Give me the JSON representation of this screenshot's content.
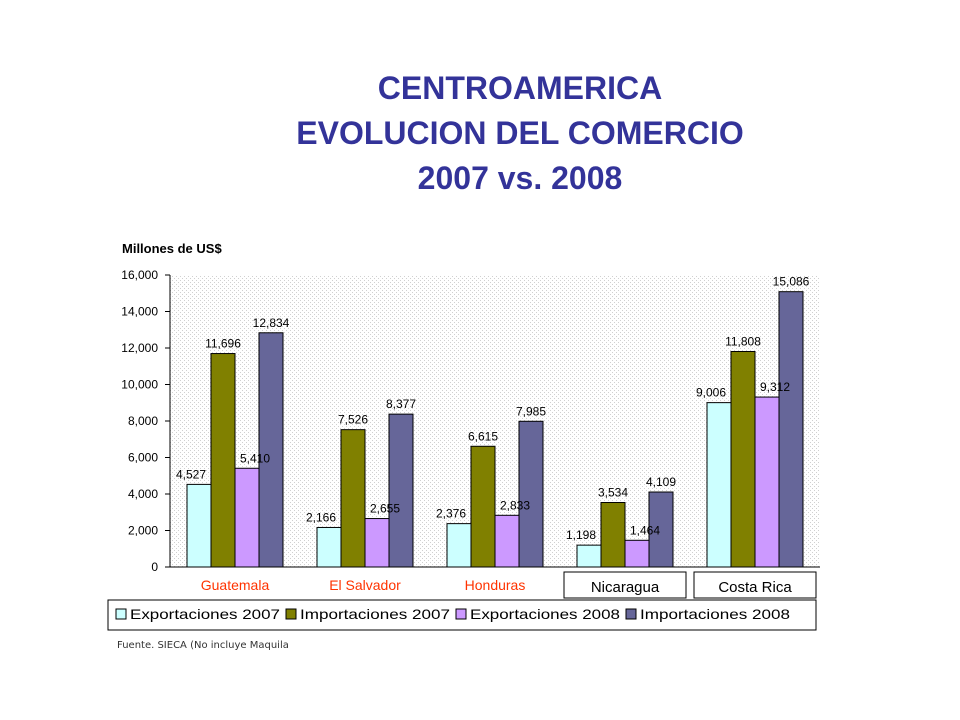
{
  "title": {
    "line1": "CENTROAMERICA",
    "line2": "EVOLUCION DEL COMERCIO",
    "line3": "2007 vs. 2008"
  },
  "source_note": "Fuente. SIECA (No incluye Maquila",
  "colors": {
    "title": "#333399",
    "category_label_boxed": "#000000",
    "category_label_plain": "#ff3300",
    "series": [
      "#ccffff",
      "#808000",
      "#cc99ff",
      "#666699"
    ]
  },
  "chart_data": {
    "type": "bar",
    "ylabel": "Millones de US$",
    "ylim": [
      0,
      16000
    ],
    "yticks": [
      0,
      2000,
      4000,
      6000,
      8000,
      10000,
      12000,
      14000,
      16000
    ],
    "ytick_labels": [
      "0",
      "2,000",
      "4,000",
      "6,000",
      "8,000",
      "10,000",
      "12,000",
      "14,000",
      "16,000"
    ],
    "grid": false,
    "legend_position": "bottom",
    "categories": [
      "Guatemala",
      "El Salvador",
      "Honduras",
      "Nicaragua",
      "Costa Rica"
    ],
    "series": [
      {
        "name": "Exportaciones 2007",
        "values": [
          4527,
          2166,
          2376,
          1198,
          9006
        ],
        "labels": [
          "4,527",
          "2,166",
          "2,376",
          "1,198",
          "9,006"
        ]
      },
      {
        "name": "Importaciones 2007",
        "values": [
          11696,
          7526,
          6615,
          3534,
          11808
        ],
        "labels": [
          "11,696",
          "7,526",
          "6,615",
          "3,534",
          "11,808"
        ]
      },
      {
        "name": "Exportaciones 2008",
        "values": [
          5410,
          2655,
          2833,
          1464,
          9312
        ],
        "labels": [
          "5,410",
          "2,655",
          "2,833",
          "1,464",
          "9,312"
        ]
      },
      {
        "name": "Importaciones 2008",
        "values": [
          12834,
          8377,
          7985,
          4109,
          15086
        ],
        "labels": [
          "12,834",
          "8,377",
          "7,985",
          "4,109",
          "15,086"
        ]
      }
    ]
  }
}
